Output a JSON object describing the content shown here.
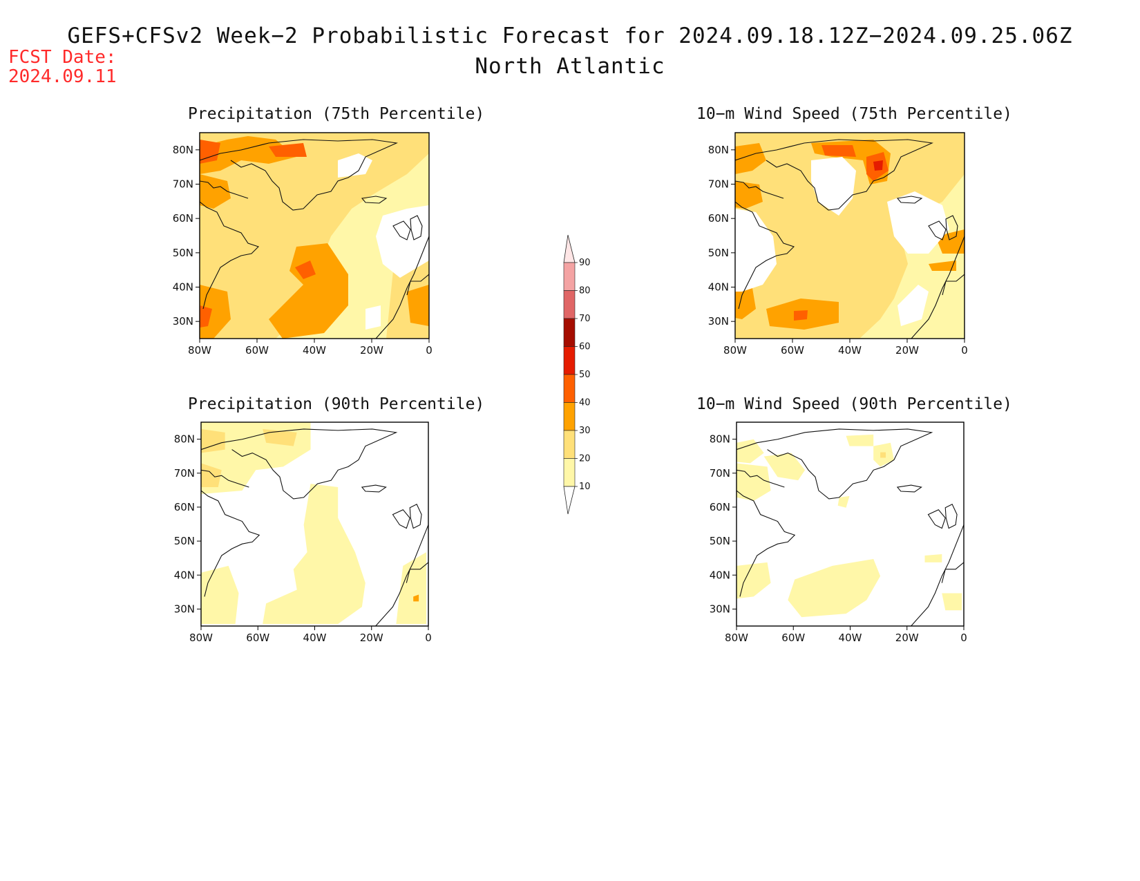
{
  "header": {
    "title": "GEFS+CFSv2 Week−2 Probabilistic Forecast for 2024.09.18.12Z−2024.09.25.06Z",
    "region": "North Atlantic",
    "fcst_label": "FCST Date:",
    "fcst_date": "2024.09.11"
  },
  "colors": {
    "fcst_date": "#ff2a2a"
  },
  "panels": [
    {
      "id": "precip-75",
      "title": "Precipitation (75th Percentile)",
      "variable": "precipitation",
      "percentile": 75
    },
    {
      "id": "wind-75",
      "title": "10−m Wind Speed (75th Percentile)",
      "variable": "10-m wind speed",
      "percentile": 75
    },
    {
      "id": "precip-90",
      "title": "Precipitation (90th Percentile)",
      "variable": "precipitation",
      "percentile": 90
    },
    {
      "id": "wind-90",
      "title": "10−m Wind Speed (90th Percentile)",
      "variable": "10-m wind speed",
      "percentile": 90
    }
  ],
  "map_axes": {
    "lat_ticks": [
      "30N",
      "40N",
      "50N",
      "60N",
      "70N",
      "80N"
    ],
    "lon_ticks": [
      "80W",
      "60W",
      "40W",
      "20W",
      "0"
    ],
    "lon_range": [
      -80,
      0
    ],
    "lat_range": [
      25,
      85
    ]
  },
  "colorbar": {
    "labels": [
      "10",
      "20",
      "30",
      "40",
      "50",
      "60",
      "70",
      "80",
      "90"
    ],
    "colors": [
      "#fff7a8",
      "#ffe079",
      "#ffa200",
      "#ff6000",
      "#e51c00",
      "#a50d00",
      "#e06666",
      "#f4a3a3",
      "#ffe6e6"
    ]
  }
}
